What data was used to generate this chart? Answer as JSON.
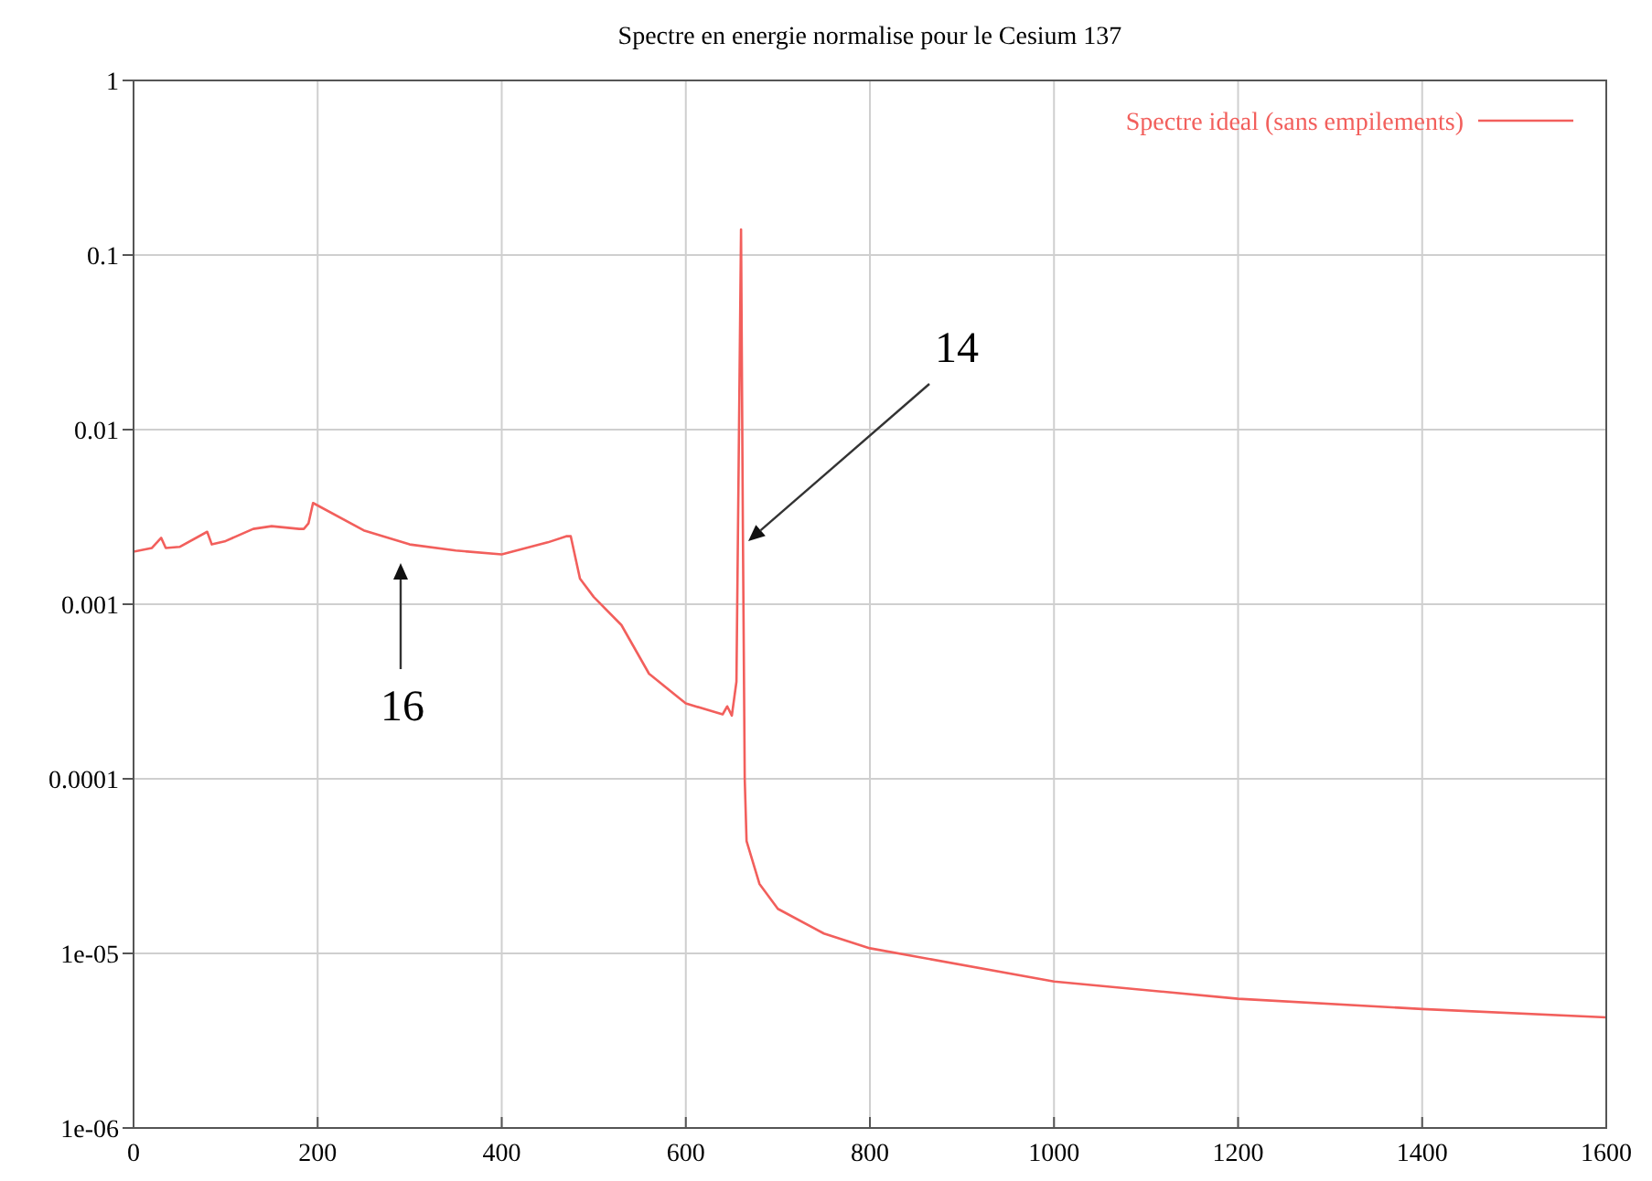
{
  "chart_data": {
    "type": "line",
    "title": "Spectre en energie normalise pour le Cesium 137",
    "x": [
      0,
      20,
      30,
      35,
      50,
      80,
      85,
      100,
      130,
      150,
      180,
      185,
      190,
      195,
      250,
      300,
      350,
      400,
      450,
      470,
      475,
      485,
      500,
      530,
      560,
      600,
      640,
      645,
      650,
      655,
      660,
      662,
      664,
      666,
      680,
      700,
      750,
      800,
      1000,
      1200,
      1400,
      1600
    ],
    "series": [
      {
        "name": "Spectre ideal (sans empilements)",
        "color": "#f25f5c",
        "values": [
          0.002,
          0.0021,
          0.0024,
          0.0021,
          0.00213,
          0.0026,
          0.0022,
          0.0023,
          0.0027,
          0.0028,
          0.0027,
          0.0027,
          0.0029,
          0.0038,
          0.00265,
          0.0022,
          0.00203,
          0.00193,
          0.00226,
          0.00245,
          0.00245,
          0.0014,
          0.0011,
          0.00076,
          0.0004,
          0.00027,
          0.000234,
          0.00026,
          0.00023,
          0.00036,
          0.14,
          0.0027,
          0.0001,
          4.4e-05,
          2.5e-05,
          1.8e-05,
          1.3e-05,
          1.07e-05,
          6.9e-06,
          5.5e-06,
          4.8e-06,
          4.3e-06
        ]
      }
    ],
    "xlim": [
      0,
      1600
    ],
    "xticks": [
      0,
      200,
      400,
      600,
      800,
      1000,
      1200,
      1400,
      1600
    ],
    "ylim": [
      1e-06,
      1
    ],
    "yticks": [
      {
        "value": 1e-06,
        "label": "1e-06"
      },
      {
        "value": 1e-05,
        "label": "1e-05"
      },
      0.0001,
      0.001,
      0.01,
      0.1,
      1
    ],
    "log": "y",
    "grid": true,
    "legend": "top right",
    "marker": "none",
    "line_style": "solid",
    "annotations": [
      "14",
      "16"
    ]
  }
}
